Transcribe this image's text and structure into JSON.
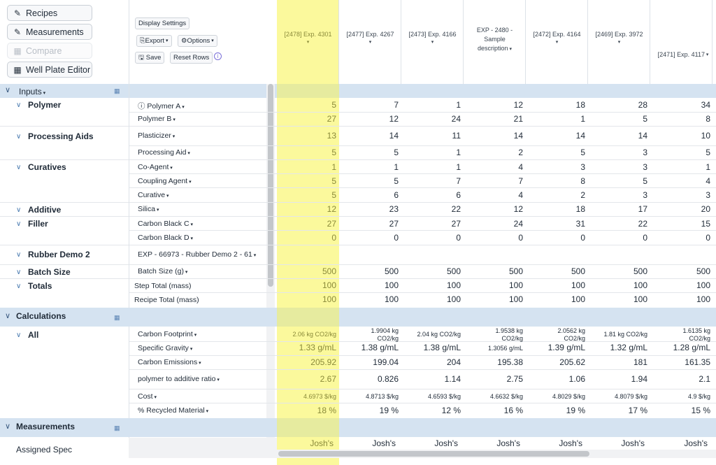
{
  "nav": {
    "recipes": "Recipes",
    "measurements": "Measurements",
    "compare": "Compare",
    "well_plate": "Well Plate Editor"
  },
  "toolbar": {
    "display_settings": "Display Settings",
    "export": "Export",
    "options": "Options",
    "save": "Save",
    "reset_rows": "Reset Rows"
  },
  "columns": [
    {
      "l1": "[2478] Exp. 4301",
      "l2": "",
      "l3": ""
    },
    {
      "l1": "[2477] Exp. 4267",
      "l2": "",
      "l3": ""
    },
    {
      "l1": "[2473] Exp. 4166",
      "l2": "",
      "l3": ""
    },
    {
      "l1": "EXP - 2480 -",
      "l2": "Sample",
      "l3": "description"
    },
    {
      "l1": "[2472] Exp. 4164",
      "l2": "",
      "l3": ""
    },
    {
      "l1": "[2469] Exp. 3972",
      "l2": "",
      "l3": ""
    },
    {
      "l1": "[2471] Exp. 4117",
      "l2": "",
      "l3": ""
    }
  ],
  "sections": {
    "inputs": "Inputs",
    "calculations": "Calculations",
    "measurements": "Measurements"
  },
  "groups": {
    "polymer": "Polymer",
    "processing_aids": "Processing Aids",
    "curatives": "Curatives",
    "additive": "Additive",
    "filler": "Filler",
    "rubber_demo": "Rubber Demo 2",
    "batch_size": "Batch Size",
    "totals": "Totals",
    "all": "All",
    "assigned_spec": "Assigned Spec"
  },
  "rows": [
    {
      "label": "Polymer A",
      "values": [
        "5",
        "7",
        "1",
        "12",
        "18",
        "28",
        "34"
      ]
    },
    {
      "label": "Polymer B",
      "values": [
        "27",
        "12",
        "24",
        "21",
        "1",
        "5",
        "8"
      ]
    },
    {
      "label": "Plasticizer",
      "values": [
        "13",
        "14",
        "11",
        "14",
        "14",
        "14",
        "10"
      ]
    },
    {
      "label": "Processing Aid",
      "values": [
        "5",
        "5",
        "1",
        "2",
        "5",
        "3",
        "5"
      ]
    },
    {
      "label": "Co-Agent",
      "values": [
        "1",
        "1",
        "1",
        "4",
        "3",
        "3",
        "1"
      ]
    },
    {
      "label": "Coupling Agent",
      "values": [
        "5",
        "5",
        "7",
        "7",
        "8",
        "5",
        "4"
      ]
    },
    {
      "label": "Curative",
      "values": [
        "5",
        "6",
        "6",
        "4",
        "2",
        "3",
        "3"
      ]
    },
    {
      "label": "Silica",
      "values": [
        "12",
        "23",
        "22",
        "12",
        "18",
        "17",
        "20"
      ]
    },
    {
      "label": "Carbon Black C",
      "values": [
        "27",
        "27",
        "27",
        "24",
        "31",
        "22",
        "15"
      ]
    },
    {
      "label": "Carbon Black D",
      "values": [
        "0",
        "0",
        "0",
        "0",
        "0",
        "0",
        "0"
      ]
    },
    {
      "label": "EXP - 66973 - Rubber Demo 2 - 61",
      "values": [
        "",
        "",
        "",
        "",
        "",
        "",
        ""
      ]
    },
    {
      "label": "Batch Size (g)",
      "values": [
        "500",
        "500",
        "500",
        "500",
        "500",
        "500",
        "500"
      ]
    },
    {
      "label": "Step Total (mass)",
      "values": [
        "100",
        "100",
        "100",
        "100",
        "100",
        "100",
        "100"
      ]
    },
    {
      "label": "Recipe Total (mass)",
      "values": [
        "100",
        "100",
        "100",
        "100",
        "100",
        "100",
        "100"
      ]
    }
  ],
  "calc_rows": [
    {
      "label": "Carbon Footprint",
      "values": [
        [
          "2.06 kg CO2/kg"
        ],
        [
          "1.9904 kg",
          "CO2/kg"
        ],
        [
          "2.04 kg CO2/kg"
        ],
        [
          "1.9538 kg",
          "CO2/kg"
        ],
        [
          "2.0562 kg",
          "CO2/kg"
        ],
        [
          "1.81 kg CO2/kg"
        ],
        [
          "1.6135 kg",
          "CO2/kg"
        ]
      ]
    },
    {
      "label": "Specific Gravity",
      "values": [
        [
          "1.33 g/mL"
        ],
        [
          "1.38 g/mL"
        ],
        [
          "1.38 g/mL"
        ],
        [
          "1.3056 g/mL"
        ],
        [
          "1.39 g/mL"
        ],
        [
          "1.32 g/mL"
        ],
        [
          "1.28 g/mL"
        ]
      ]
    },
    {
      "label": "Carbon Emissions",
      "values": [
        [
          "205.92"
        ],
        [
          "199.04"
        ],
        [
          "204"
        ],
        [
          "195.38"
        ],
        [
          "205.62"
        ],
        [
          "181"
        ],
        [
          "161.35"
        ]
      ]
    },
    {
      "label": "polymer to additive ratio",
      "values": [
        [
          "2.67"
        ],
        [
          "0.826"
        ],
        [
          "1.14"
        ],
        [
          "2.75"
        ],
        [
          "1.06"
        ],
        [
          "1.94"
        ],
        [
          "2.1"
        ]
      ]
    },
    {
      "label": "Cost",
      "values": [
        [
          "4.6973 $/kg"
        ],
        [
          "4.8713 $/kg"
        ],
        [
          "4.6593 $/kg"
        ],
        [
          "4.6632 $/kg"
        ],
        [
          "4.8029 $/kg"
        ],
        [
          "4.8079 $/kg"
        ],
        [
          "4.9 $/kg"
        ]
      ]
    },
    {
      "label": "% Recycled Material",
      "values": [
        [
          "18 %"
        ],
        [
          "19 %"
        ],
        [
          "12 %"
        ],
        [
          "16 %"
        ],
        [
          "19 %"
        ],
        [
          "17 %"
        ],
        [
          "15 %"
        ]
      ]
    }
  ],
  "assigned_spec": [
    "Josh's",
    "Josh's",
    "Josh's",
    "Josh's",
    "Josh's",
    "Josh's",
    "Josh's"
  ],
  "colors": {
    "highlight": "#fbf99c",
    "section": "#d5e3f1",
    "accent": "#4a7bb0"
  }
}
